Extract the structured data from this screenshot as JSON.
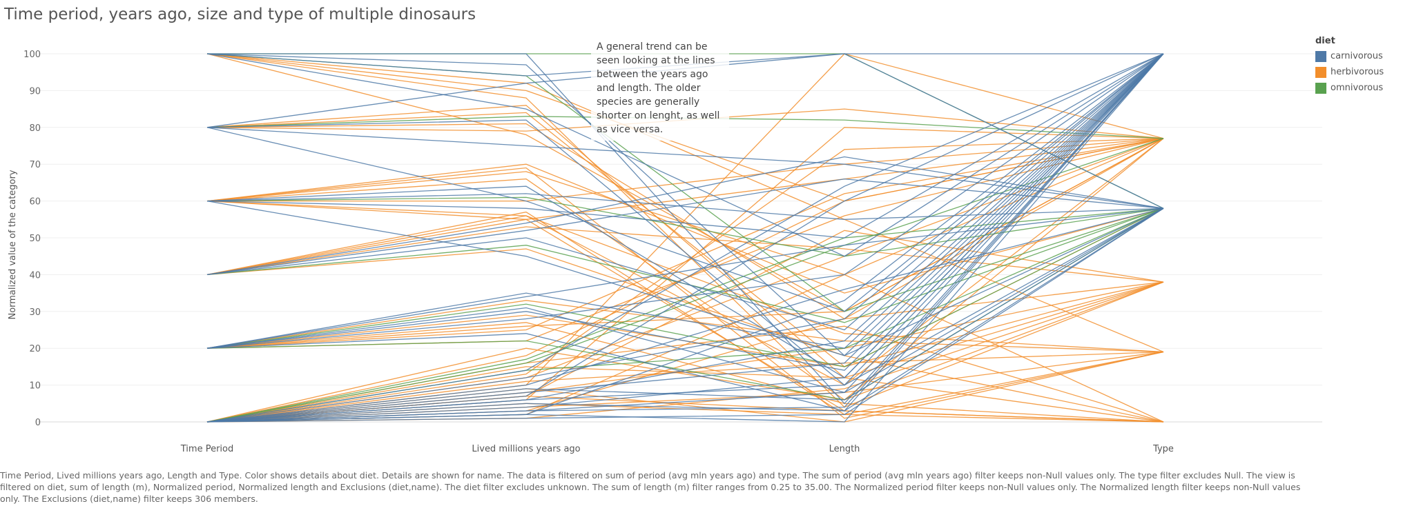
{
  "title": "Time period, years ago, size and type of multiple dinosaurs",
  "annotation": "A general trend can be seen looking at the lines between the years ago and length. The older species are generally shorter on lenght, as well as vice versa.",
  "caption": "Time Period, Lived millions years ago, Length and Type.  Color shows details about diet.  Details are shown for name. The data is filtered on sum of period (avg mln years ago) and type. The sum of period (avg mln years ago) filter keeps non-Null values only. The type filter excludes Null. The view is filtered on diet, sum of length (m), Normalized period, Normalized length and Exclusions (diet,name). The diet filter excludes unknown. The sum of length (m) filter ranges from 0.25 to 35.00. The Normalized period filter keeps non-Null values only. The Normalized length filter keeps non-Null values only. The Exclusions (diet,name) filter keeps 306 members.",
  "legend": {
    "title": "diet",
    "items": [
      {
        "label": "carnivorous",
        "color": "#4e79a7"
      },
      {
        "label": "herbivorous",
        "color": "#f28e2b"
      },
      {
        "label": "omnivorous",
        "color": "#59a14f"
      }
    ]
  },
  "chart_data": {
    "type": "parallel-coordinates",
    "ylabel": "Normalized value of the category",
    "ylim": [
      0,
      100
    ],
    "yticks": [
      0,
      10,
      20,
      30,
      40,
      50,
      60,
      70,
      80,
      90,
      100
    ],
    "axes": [
      "Time Period",
      "Lived millions years ago",
      "Length",
      "Type"
    ],
    "grid": true,
    "legend_position": "top-right",
    "series": [
      {
        "name": "carnivorous",
        "color": "#4e79a7",
        "lines": [
          [
            100,
            100,
            5,
            100
          ],
          [
            100,
            97,
            18,
            58
          ],
          [
            100,
            85,
            45,
            100
          ],
          [
            100,
            94,
            100,
            100
          ],
          [
            80,
            75,
            70,
            58
          ],
          [
            80,
            82,
            10,
            100
          ],
          [
            80,
            60,
            30,
            100
          ],
          [
            60,
            62,
            55,
            58
          ],
          [
            60,
            58,
            50,
            100
          ],
          [
            60,
            64,
            12,
            100
          ],
          [
            40,
            52,
            66,
            58
          ],
          [
            40,
            50,
            25,
            100
          ],
          [
            40,
            54,
            72,
            58
          ],
          [
            20,
            35,
            20,
            100
          ],
          [
            20,
            34,
            48,
            58
          ],
          [
            20,
            31,
            8,
            100
          ],
          [
            20,
            28,
            40,
            100
          ],
          [
            20,
            24,
            3,
            58
          ],
          [
            0,
            8,
            16,
            100
          ],
          [
            0,
            5,
            3,
            100
          ],
          [
            0,
            3,
            8,
            58
          ],
          [
            0,
            6,
            22,
            100
          ],
          [
            0,
            2,
            0,
            100
          ],
          [
            0,
            10,
            36,
            58
          ],
          [
            0,
            4,
            12,
            100
          ],
          [
            0,
            7,
            60,
            100
          ],
          [
            0,
            1,
            2,
            58
          ],
          [
            0,
            12,
            28,
            100
          ],
          [
            0,
            3,
            4,
            100
          ],
          [
            0,
            9,
            6,
            58
          ],
          [
            20,
            30,
            14,
            100
          ],
          [
            60,
            45,
            18,
            100
          ],
          [
            0,
            14,
            64,
            100
          ],
          [
            0,
            2,
            33,
            100
          ],
          [
            0,
            6,
            10,
            58
          ],
          [
            80,
            92,
            100,
            58
          ]
        ]
      },
      {
        "name": "herbivorous",
        "color": "#f28e2b",
        "lines": [
          [
            100,
            90,
            60,
            77
          ],
          [
            100,
            88,
            4,
            38
          ],
          [
            100,
            92,
            55,
            19
          ],
          [
            80,
            81,
            28,
            77
          ],
          [
            80,
            86,
            12,
            0
          ],
          [
            80,
            79,
            85,
            77
          ],
          [
            60,
            70,
            35,
            58
          ],
          [
            60,
            66,
            6,
            38
          ],
          [
            60,
            68,
            40,
            77
          ],
          [
            60,
            56,
            24,
            19
          ],
          [
            60,
            55,
            3,
            0
          ],
          [
            40,
            56,
            10,
            77
          ],
          [
            40,
            53,
            47,
            38
          ],
          [
            40,
            57,
            2,
            19
          ],
          [
            40,
            55,
            66,
            77
          ],
          [
            20,
            26,
            30,
            77
          ],
          [
            20,
            29,
            15,
            38
          ],
          [
            20,
            27,
            5,
            0
          ],
          [
            20,
            22,
            56,
            77
          ],
          [
            0,
            10,
            100,
            77
          ],
          [
            0,
            6,
            80,
            77
          ],
          [
            0,
            8,
            20,
            38
          ],
          [
            0,
            4,
            8,
            19
          ],
          [
            0,
            7,
            3,
            0
          ],
          [
            0,
            12,
            45,
            77
          ],
          [
            0,
            15,
            12,
            38
          ],
          [
            0,
            9,
            0,
            19
          ],
          [
            0,
            5,
            2,
            0
          ],
          [
            0,
            18,
            60,
            77
          ],
          [
            0,
            3,
            28,
            38
          ],
          [
            0,
            11,
            16,
            19
          ],
          [
            0,
            20,
            6,
            77
          ],
          [
            0,
            2,
            40,
            0
          ],
          [
            20,
            33,
            22,
            19
          ],
          [
            60,
            60,
            70,
            77
          ],
          [
            80,
            84,
            15,
            58
          ],
          [
            100,
            78,
            30,
            77
          ],
          [
            40,
            47,
            18,
            0
          ],
          [
            0,
            13,
            74,
            77
          ],
          [
            0,
            1,
            9,
            38
          ],
          [
            60,
            69,
            1,
            19
          ],
          [
            20,
            25,
            62,
            77
          ],
          [
            0,
            16,
            26,
            0
          ],
          [
            0,
            7,
            52,
            38
          ]
        ]
      },
      {
        "name": "omnivorous",
        "color": "#59a14f",
        "lines": [
          [
            100,
            94,
            30,
            58
          ],
          [
            100,
            100,
            100,
            58
          ],
          [
            80,
            83,
            82,
            77
          ],
          [
            60,
            61,
            45,
            58
          ],
          [
            40,
            48,
            27,
            58
          ],
          [
            20,
            32,
            15,
            58
          ],
          [
            0,
            17,
            50,
            58
          ],
          [
            0,
            14,
            20,
            58
          ],
          [
            0,
            16,
            48,
            77
          ],
          [
            20,
            22,
            6,
            58
          ]
        ]
      }
    ]
  }
}
